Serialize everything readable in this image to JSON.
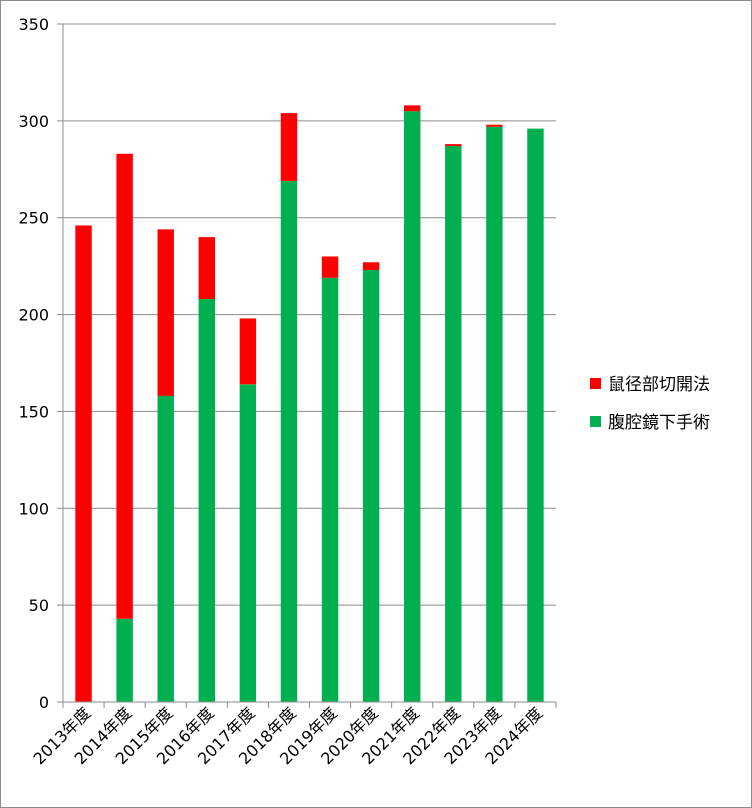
{
  "chart_data": {
    "type": "bar",
    "stacked": true,
    "categories": [
      "2013年度",
      "2014年度",
      "2015年度",
      "2016年度",
      "2017年度",
      "2018年度",
      "2019年度",
      "2020年度",
      "2021年度",
      "2022年度",
      "2023年度",
      "2024年度"
    ],
    "series": [
      {
        "name": "腹腔鏡下手術",
        "color": "#00b050",
        "values": [
          0,
          43,
          158,
          208,
          164,
          269,
          219,
          223,
          305,
          287,
          297,
          296
        ]
      },
      {
        "name": "鼠径部切開法",
        "color": "#ff0000",
        "values": [
          246,
          240,
          86,
          32,
          34,
          35,
          11,
          4,
          3,
          1,
          1,
          0
        ]
      }
    ],
    "legend_order": [
      1,
      0
    ],
    "ylim": [
      0,
      350
    ],
    "yticks": [
      0,
      50,
      100,
      150,
      200,
      250,
      300,
      350
    ],
    "grid": true,
    "legend": "right",
    "title": "",
    "xlabel": "",
    "ylabel": ""
  }
}
